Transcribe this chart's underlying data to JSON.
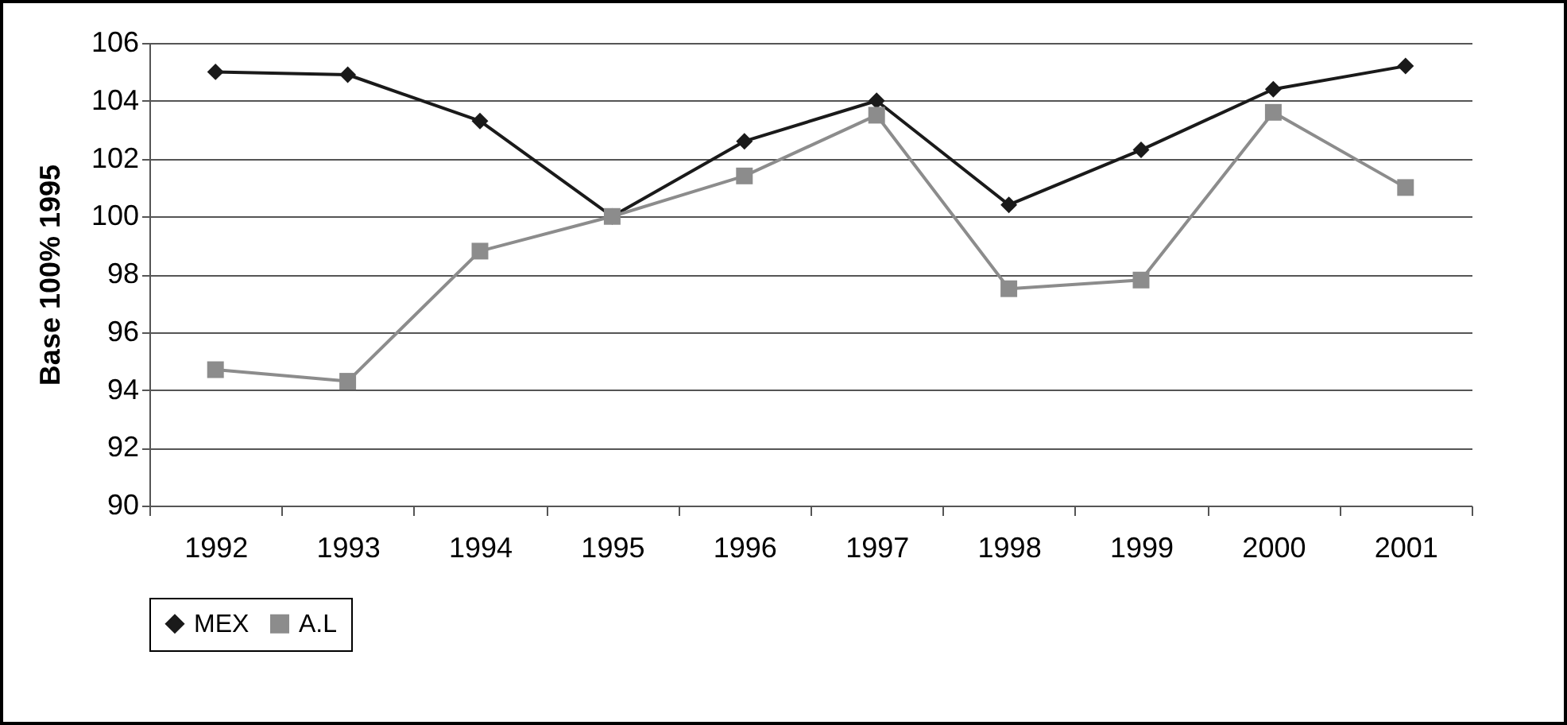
{
  "chart_data": {
    "type": "line",
    "ylabel": "Base 100% 1995",
    "categories": [
      "1992",
      "1993",
      "1994",
      "1995",
      "1996",
      "1997",
      "1998",
      "1999",
      "2000",
      "2001"
    ],
    "series": [
      {
        "name": "MEX",
        "color": "#1a1a1a",
        "marker": "diamond",
        "values": [
          105.0,
          104.9,
          103.3,
          100.0,
          102.6,
          104.0,
          100.4,
          102.3,
          104.4,
          105.2
        ]
      },
      {
        "name": "A.L",
        "color": "#8c8c8c",
        "marker": "square",
        "values": [
          94.7,
          94.3,
          98.8,
          100.0,
          101.4,
          103.5,
          97.5,
          97.8,
          103.6,
          101.0
        ]
      }
    ],
    "ylim": [
      90,
      106
    ],
    "yticks": [
      90,
      92,
      94,
      96,
      98,
      100,
      102,
      104,
      106
    ],
    "grid": "y",
    "legend": "bottom"
  }
}
